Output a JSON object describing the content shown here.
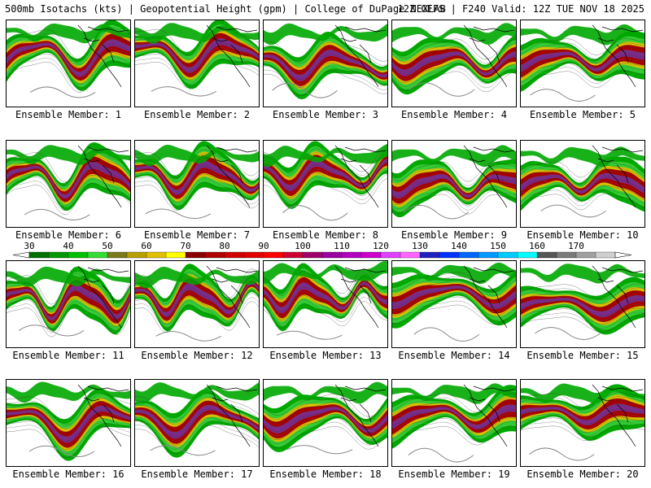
{
  "header": {
    "left": "500mb Isotachs (kts) | Geopotential Height (gpm) | College of DuPage NEXLAB",
    "right": "12Z GEFS | F240 Valid: 12Z TUE NOV 18 2025"
  },
  "panels": [
    {
      "caption": "Ensemble Member: 1"
    },
    {
      "caption": "Ensemble Member: 2"
    },
    {
      "caption": "Ensemble Member: 3"
    },
    {
      "caption": "Ensemble Member: 4"
    },
    {
      "caption": "Ensemble Member: 5"
    },
    {
      "caption": "Ensemble Member: 6"
    },
    {
      "caption": "Ensemble Member: 7"
    },
    {
      "caption": "Ensemble Member: 8"
    },
    {
      "caption": "Ensemble Member: 9"
    },
    {
      "caption": "Ensemble Member: 10"
    },
    {
      "caption": "Ensemble Member: 11"
    },
    {
      "caption": "Ensemble Member: 12"
    },
    {
      "caption": "Ensemble Member: 13"
    },
    {
      "caption": "Ensemble Member: 14"
    },
    {
      "caption": "Ensemble Member: 15"
    },
    {
      "caption": "Ensemble Member: 16"
    },
    {
      "caption": "Ensemble Member: 17"
    },
    {
      "caption": "Ensemble Member: 18"
    },
    {
      "caption": "Ensemble Member: 19"
    },
    {
      "caption": "Ensemble Member: 20"
    }
  ],
  "colorbar": {
    "labels": [
      "30",
      "40",
      "50",
      "60",
      "70",
      "80",
      "90",
      "100",
      "110",
      "120",
      "130",
      "140",
      "150",
      "160",
      "170"
    ],
    "colors": [
      "#007000",
      "#009900",
      "#00c000",
      "#33dd33",
      "#7a7a1a",
      "#b8a000",
      "#e0c000",
      "#ffff00",
      "#8b0000",
      "#b00000",
      "#d00000",
      "#e00000",
      "#ff0000",
      "#cc0033",
      "#a0006a",
      "#9900a0",
      "#b300c0",
      "#cc00cc",
      "#e040ff",
      "#ff66ff",
      "#2020c0",
      "#0033ff",
      "#0066ff",
      "#0099ff",
      "#00ccff",
      "#00ffff",
      "#555555",
      "#7a7a7a",
      "#a0a0a0",
      "#cfcfcf"
    ]
  },
  "map_colors": {
    "outer": "#00a800",
    "green_light": "#33cc33",
    "yellow": "#d8c000",
    "red": "#a80000",
    "purple": "#7a2b8a",
    "contour": "#888888",
    "coast": "#000000"
  }
}
